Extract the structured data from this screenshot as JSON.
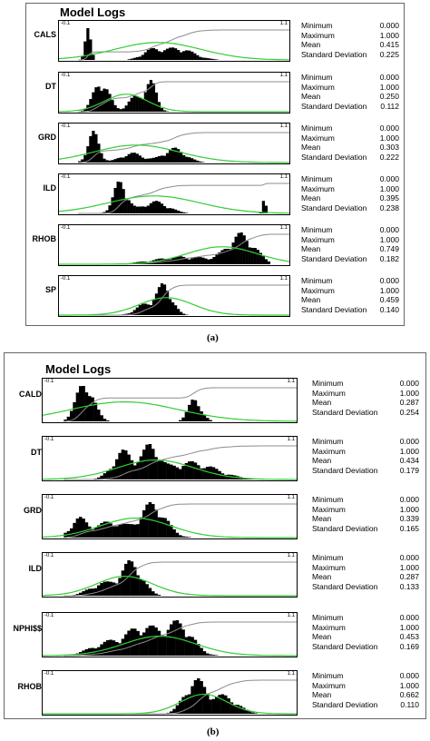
{
  "colors": {
    "bars": "#000000",
    "cumulative": "#8c8c8c",
    "normal_fit": "#33cc33",
    "frame": "#000000"
  },
  "stat_labels": [
    "Minimum",
    "Maximum",
    "Mean",
    "Standard Deviation"
  ],
  "figures": [
    {
      "caption": "(a)",
      "title": "Model Logs",
      "logs": [
        {
          "name": "CALS",
          "tick_left": "-0.1",
          "tick_right": "1.1",
          "stats": [
            "0.000",
            "1.000",
            "0.415",
            "0.225"
          ]
        },
        {
          "name": "DT",
          "tick_left": "-0.1",
          "tick_right": "1.1",
          "stats": [
            "0.000",
            "1.000",
            "0.250",
            "0.112"
          ]
        },
        {
          "name": "GRD",
          "tick_left": "-0.1",
          "tick_right": "1.1",
          "stats": [
            "0.000",
            "1.000",
            "0.303",
            "0.222"
          ]
        },
        {
          "name": "ILD",
          "tick_left": "-0.1",
          "tick_right": "1.1",
          "stats": [
            "0.000",
            "1.000",
            "0.395",
            "0.238"
          ]
        },
        {
          "name": "RHOB",
          "tick_left": "-0.1",
          "tick_right": "1.1",
          "stats": [
            "0.000",
            "1.000",
            "0.749",
            "0.182"
          ]
        },
        {
          "name": "SP",
          "tick_left": "-0.1",
          "tick_right": "1.1",
          "stats": [
            "0.000",
            "1.000",
            "0.459",
            "0.140"
          ]
        }
      ]
    },
    {
      "caption": "(b)",
      "title": "Model Logs",
      "logs": [
        {
          "name": "CALD",
          "tick_left": "-0.1",
          "tick_right": "1.1",
          "stats": [
            "0.000",
            "1.000",
            "0.287",
            "0.254"
          ]
        },
        {
          "name": "DT",
          "tick_left": "-0.1",
          "tick_right": "1.1",
          "stats": [
            "0.000",
            "1.000",
            "0.434",
            "0.179"
          ]
        },
        {
          "name": "GRD",
          "tick_left": "-0.1",
          "tick_right": "1.1",
          "stats": [
            "0.000",
            "1.000",
            "0.339",
            "0.165"
          ]
        },
        {
          "name": "ILD",
          "tick_left": "-0.1",
          "tick_right": "1.1",
          "stats": [
            "0.000",
            "1.000",
            "0.287",
            "0.133"
          ]
        },
        {
          "name": "NPHI$$",
          "tick_left": "-0.1",
          "tick_right": "1.1",
          "stats": [
            "0.000",
            "1.000",
            "0.453",
            "0.169"
          ]
        },
        {
          "name": "RHOB",
          "tick_left": "-0.1",
          "tick_right": "1.1",
          "stats": [
            "0.000",
            "1.000",
            "0.662",
            "0.110"
          ]
        }
      ]
    }
  ],
  "chart_data": [
    {
      "type": "bar",
      "title": "Model Logs",
      "xlim": [
        -0.1,
        1.1
      ],
      "series": [
        {
          "name": "CALS",
          "mean": 0.415,
          "std": 0.225,
          "min": 0.0,
          "max": 1.0
        },
        {
          "name": "DT",
          "mean": 0.25,
          "std": 0.112,
          "min": 0.0,
          "max": 1.0
        },
        {
          "name": "GRD",
          "mean": 0.303,
          "std": 0.222,
          "min": 0.0,
          "max": 1.0
        },
        {
          "name": "ILD",
          "mean": 0.395,
          "std": 0.238,
          "min": 0.0,
          "max": 1.0
        },
        {
          "name": "RHOB",
          "mean": 0.749,
          "std": 0.182,
          "min": 0.0,
          "max": 1.0
        },
        {
          "name": "SP",
          "mean": 0.459,
          "std": 0.14,
          "min": 0.0,
          "max": 1.0
        }
      ]
    },
    {
      "type": "bar",
      "title": "Model Logs",
      "xlim": [
        -0.1,
        1.1
      ],
      "series": [
        {
          "name": "CALD",
          "mean": 0.287,
          "std": 0.254,
          "min": 0.0,
          "max": 1.0
        },
        {
          "name": "DT",
          "mean": 0.434,
          "std": 0.179,
          "min": 0.0,
          "max": 1.0
        },
        {
          "name": "GRD",
          "mean": 0.339,
          "std": 0.165,
          "min": 0.0,
          "max": 1.0
        },
        {
          "name": "ILD",
          "mean": 0.287,
          "std": 0.133,
          "min": 0.0,
          "max": 1.0
        },
        {
          "name": "NPHI$$",
          "mean": 0.453,
          "std": 0.169,
          "min": 0.0,
          "max": 1.0
        },
        {
          "name": "RHOB",
          "mean": 0.662,
          "std": 0.11,
          "min": 0.0,
          "max": 1.0
        }
      ]
    }
  ]
}
